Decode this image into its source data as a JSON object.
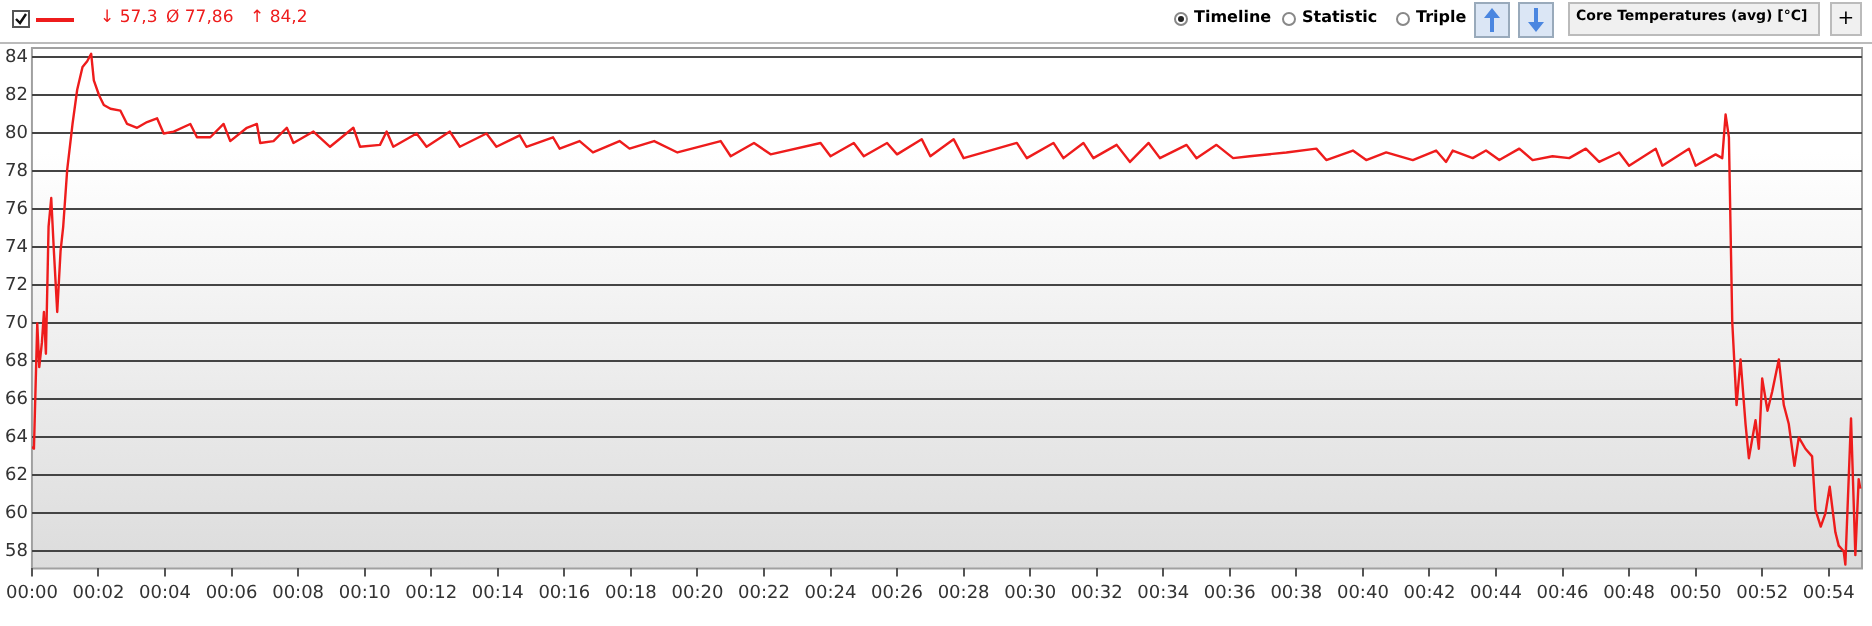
{
  "chart_data": {
    "type": "line",
    "annotations": [
      "↓ 57,3",
      "Ø 77,86",
      "↑ 84,2",
      "Timeline",
      "Statistic",
      "Triple",
      "Core Temperatures (avg) [°C]",
      "+"
    ],
    "xlim": [
      0,
      55
    ],
    "ylim": [
      57.1,
      84.5
    ],
    "xticks": [
      {
        "value": 0,
        "label": "00:00"
      },
      {
        "value": 2,
        "label": "00:02"
      },
      {
        "value": 4,
        "label": "00:04"
      },
      {
        "value": 6,
        "label": "00:06"
      },
      {
        "value": 8,
        "label": "00:08"
      },
      {
        "value": 10,
        "label": "00:10"
      },
      {
        "value": 12,
        "label": "00:12"
      },
      {
        "value": 14,
        "label": "00:14"
      },
      {
        "value": 16,
        "label": "00:16"
      },
      {
        "value": 18,
        "label": "00:18"
      },
      {
        "value": 20,
        "label": "00:20"
      },
      {
        "value": 22,
        "label": "00:22"
      },
      {
        "value": 24,
        "label": "00:24"
      },
      {
        "value": 26,
        "label": "00:26"
      },
      {
        "value": 28,
        "label": "00:28"
      },
      {
        "value": 30,
        "label": "00:30"
      },
      {
        "value": 32,
        "label": "00:32"
      },
      {
        "value": 34,
        "label": "00:34"
      },
      {
        "value": 36,
        "label": "00:36"
      },
      {
        "value": 38,
        "label": "00:38"
      },
      {
        "value": 40,
        "label": "00:40"
      },
      {
        "value": 42,
        "label": "00:42"
      },
      {
        "value": 44,
        "label": "00:44"
      },
      {
        "value": 46,
        "label": "00:46"
      },
      {
        "value": 48,
        "label": "00:48"
      },
      {
        "value": 50,
        "label": "00:50"
      },
      {
        "value": 52,
        "label": "00:52"
      },
      {
        "value": 54,
        "label": "00:54"
      }
    ],
    "yticks": [
      58,
      60,
      62,
      64,
      66,
      68,
      70,
      72,
      74,
      76,
      78,
      80,
      82,
      84
    ],
    "grid": "y",
    "marker": "none",
    "line_style": "solid",
    "series": [
      {
        "color": "#ee1c1c",
        "x": [
          0,
          0.06,
          0.16,
          0.22,
          0.3,
          0.36,
          0.42,
          0.5,
          0.58,
          0.66,
          0.76,
          0.86,
          0.94,
          1.06,
          1.22,
          1.36,
          1.52,
          1.66,
          1.78,
          1.86,
          2.02,
          2.16,
          2.36,
          2.66,
          2.86,
          3.16,
          3.46,
          3.76,
          3.96,
          4.26,
          4.76,
          4.96,
          5.36,
          5.76,
          5.96,
          6.46,
          6.76,
          6.86,
          7.26,
          7.66,
          7.86,
          8.46,
          8.96,
          9.66,
          9.86,
          10.46,
          10.66,
          10.86,
          11.56,
          11.86,
          12.56,
          12.86,
          13.66,
          13.96,
          14.66,
          14.86,
          15.66,
          15.86,
          16.46,
          16.86,
          17.66,
          17.96,
          18.7,
          19.4,
          20.7,
          21,
          21.7,
          22.2,
          23.7,
          24,
          24.7,
          25,
          25.7,
          26,
          26.74,
          27,
          27.7,
          28,
          29.6,
          29.9,
          30.7,
          31,
          31.6,
          31.9,
          32.6,
          33,
          33.56,
          33.9,
          34.7,
          35,
          35.6,
          36.1,
          36.6,
          37.7,
          38.6,
          38.9,
          39.7,
          40.1,
          40.7,
          41.5,
          42.2,
          42.5,
          42.7,
          43.3,
          43.7,
          44.1,
          44.7,
          45.1,
          45.7,
          46.2,
          46.7,
          47.1,
          47.7,
          48,
          48.8,
          49,
          49.8,
          50,
          50.6,
          50.8,
          50.9,
          51,
          51.1,
          51.23,
          51.35,
          51.5,
          51.6,
          51.8,
          51.9,
          52,
          52.16,
          52.3,
          52.5,
          52.65,
          52.8,
          52.97,
          53.1,
          53.3,
          53.5,
          53.6,
          53.76,
          53.9,
          54.03,
          54.2,
          54.3,
          54.45,
          54.5,
          54.67,
          54.8,
          54.9,
          54.95
        ],
        "values": [
          63.5,
          63.4,
          70,
          67.7,
          69,
          70.6,
          68.4,
          75.1,
          76.6,
          73.8,
          70.6,
          73.8,
          75.1,
          78.1,
          80.5,
          82.3,
          83.5,
          83.8,
          84.2,
          82.8,
          82,
          81.5,
          81.3,
          81.2,
          80.5,
          80.3,
          80.6,
          80.8,
          80,
          80.1,
          80.5,
          79.8,
          79.8,
          80.5,
          79.6,
          80.3,
          80.5,
          79.5,
          79.6,
          80.3,
          79.5,
          80.1,
          79.3,
          80.3,
          79.3,
          79.4,
          80.1,
          79.3,
          80,
          79.3,
          80.1,
          79.3,
          80,
          79.3,
          79.9,
          79.3,
          79.8,
          79.2,
          79.6,
          79,
          79.6,
          79.2,
          79.6,
          79,
          79.6,
          78.8,
          79.5,
          78.9,
          79.5,
          78.8,
          79.5,
          78.8,
          79.5,
          78.9,
          79.7,
          78.8,
          79.7,
          78.7,
          79.5,
          78.7,
          79.5,
          78.7,
          79.5,
          78.7,
          79.4,
          78.5,
          79.5,
          78.7,
          79.4,
          78.7,
          79.4,
          78.7,
          78.8,
          79,
          79.2,
          78.6,
          79.1,
          78.6,
          79,
          78.6,
          79.1,
          78.5,
          79.1,
          78.7,
          79.1,
          78.6,
          79.2,
          78.6,
          78.8,
          78.7,
          79.2,
          78.5,
          79,
          78.3,
          79.2,
          78.3,
          79.2,
          78.3,
          78.9,
          78.7,
          81,
          79.8,
          70.1,
          65.7,
          68.1,
          64.7,
          62.9,
          64.9,
          63.4,
          67.1,
          65.4,
          66.4,
          68.1,
          65.7,
          64.7,
          62.5,
          64,
          63.4,
          63,
          60.2,
          59.3,
          60,
          61.4,
          59,
          58.3,
          58,
          57.3,
          65,
          57.8,
          61.8,
          61.3
        ]
      }
    ]
  }
}
